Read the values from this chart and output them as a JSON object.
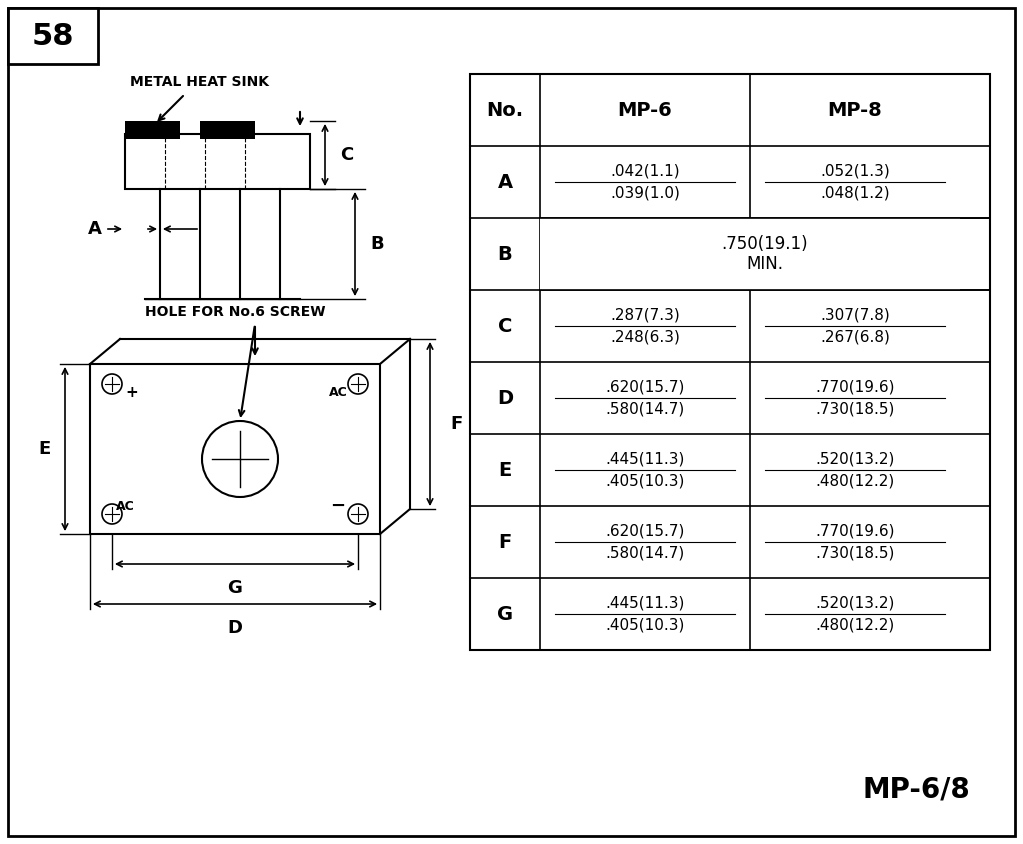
{
  "page_num": "58",
  "model": "MP-6/8",
  "background_color": "#f0f0f0",
  "table": {
    "headers": [
      "No.",
      "MP-6",
      "MP-8"
    ],
    "rows": [
      {
        "label": "A",
        "mp6": ".042(1.1)\n.039(1.0)",
        "mp8": ".052(1.3)\n.048(1.2)"
      },
      {
        "label": "B",
        "mp6": ".750(19.1)\nMIN.",
        "mp8": null
      },
      {
        "label": "C",
        "mp6": ".287(7.3)\n.248(6.3)",
        "mp8": ".307(7.8)\n.267(6.8)"
      },
      {
        "label": "D",
        "mp6": ".620(15.7)\n.580(14.7)",
        "mp8": ".770(19.6)\n.730(18.5)"
      },
      {
        "label": "E",
        "mp6": ".445(11.3)\n.405(10.3)",
        "mp8": ".520(13.2)\n.480(12.2)"
      },
      {
        "label": "F",
        "mp6": ".620(15.7)\n.580(14.7)",
        "mp8": ".770(19.6)\n.730(18.5)"
      },
      {
        "label": "G",
        "mp6": ".445(11.3)\n.405(10.3)",
        "mp8": ".520(13.2)\n.480(12.2)"
      }
    ]
  }
}
